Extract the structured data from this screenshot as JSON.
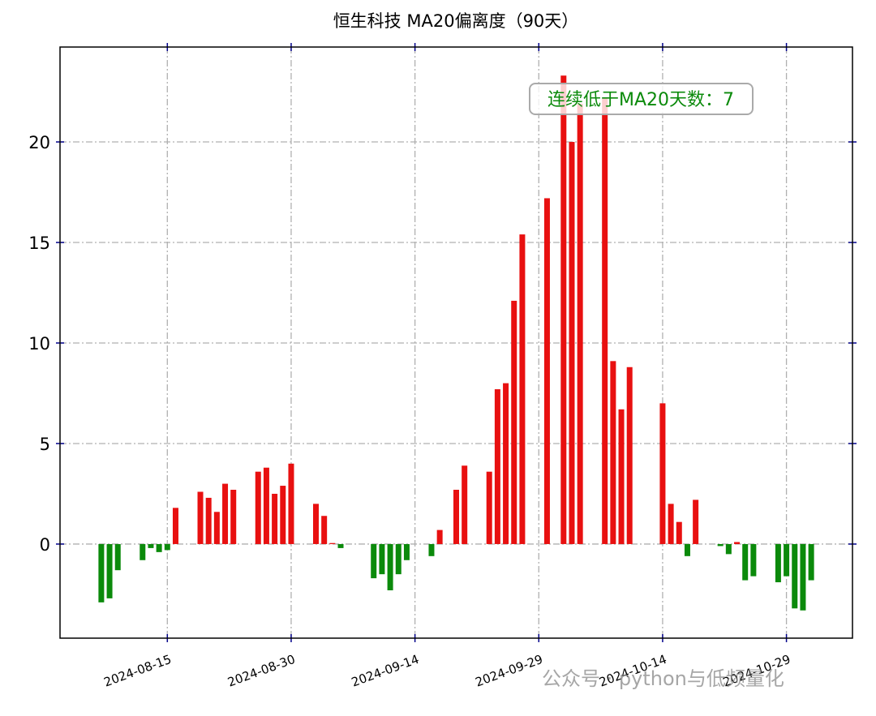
{
  "chart_data": {
    "type": "bar",
    "title": "恒生科技 MA20偏离度（90天）",
    "annotation": "连续低于MA20天数：7",
    "watermark": "公众号 · python与低频量化",
    "x": [
      "2024-08-07",
      "2024-08-08",
      "2024-08-09",
      "2024-08-12",
      "2024-08-13",
      "2024-08-14",
      "2024-08-15",
      "2024-08-16",
      "2024-08-19",
      "2024-08-20",
      "2024-08-21",
      "2024-08-22",
      "2024-08-23",
      "2024-08-26",
      "2024-08-27",
      "2024-08-28",
      "2024-08-29",
      "2024-08-30",
      "2024-09-02",
      "2024-09-03",
      "2024-09-04",
      "2024-09-05",
      "2024-09-09",
      "2024-09-10",
      "2024-09-11",
      "2024-09-12",
      "2024-09-13",
      "2024-09-16",
      "2024-09-17",
      "2024-09-19",
      "2024-09-20",
      "2024-09-23",
      "2024-09-24",
      "2024-09-25",
      "2024-09-26",
      "2024-09-27",
      "2024-09-30",
      "2024-10-02",
      "2024-10-03",
      "2024-10-04",
      "2024-10-07",
      "2024-10-08",
      "2024-10-09",
      "2024-10-10",
      "2024-10-14",
      "2024-10-15",
      "2024-10-16",
      "2024-10-17",
      "2024-10-18",
      "2024-10-21",
      "2024-10-22",
      "2024-10-23",
      "2024-10-24",
      "2024-10-25",
      "2024-10-28",
      "2024-10-29",
      "2024-10-30",
      "2024-10-31",
      "2024-11-01"
    ],
    "values": [
      -2.9,
      -2.7,
      -1.3,
      -0.8,
      -0.2,
      -0.4,
      -0.3,
      1.8,
      2.6,
      2.3,
      1.6,
      3.0,
      2.7,
      3.6,
      3.8,
      2.5,
      2.9,
      4.0,
      2.0,
      1.4,
      0.05,
      -0.2,
      -1.7,
      -1.5,
      -2.3,
      -1.5,
      -0.8,
      -0.6,
      0.7,
      2.7,
      3.9,
      3.6,
      7.7,
      8.0,
      12.1,
      15.4,
      17.2,
      23.3,
      20.0,
      21.9,
      22.2,
      9.1,
      6.7,
      8.8,
      7.0,
      2.0,
      1.1,
      -0.6,
      2.2,
      -0.1,
      -0.5,
      0.1,
      -1.8,
      -1.6,
      -1.9,
      -1.6,
      -3.2,
      -3.3,
      -1.8
    ],
    "positive_color": "#e81010",
    "negative_color": "#0b8a0b",
    "xlim": [
      "2024-08-02",
      "2024-11-06"
    ],
    "xticks": [
      "2024-08-15",
      "2024-08-30",
      "2024-09-14",
      "2024-09-29",
      "2024-10-14",
      "2024-10-29"
    ],
    "ylim": [
      -4.68,
      24.72
    ],
    "yticks": [
      0,
      5,
      10,
      15,
      20
    ],
    "grid": true
  }
}
